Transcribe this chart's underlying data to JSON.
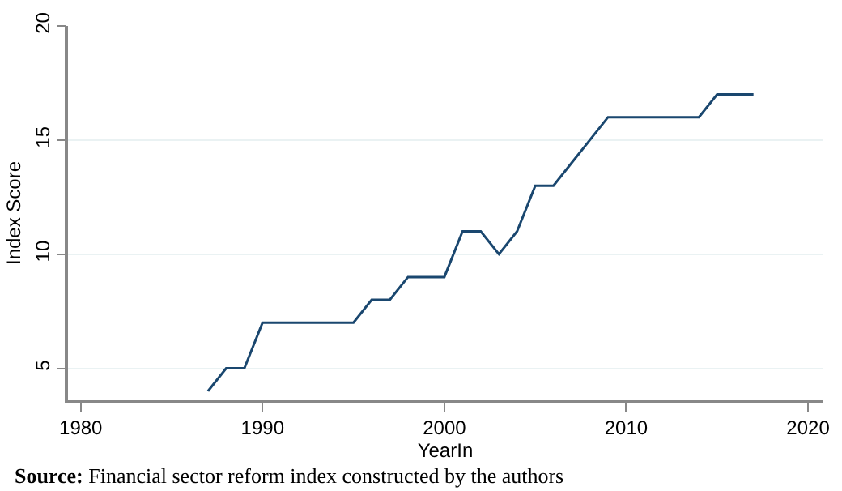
{
  "chart_data": {
    "type": "line",
    "xlabel": "YearIn",
    "ylabel": "Index Score",
    "x": [
      1987,
      1988,
      1989,
      1990,
      1991,
      1992,
      1993,
      1994,
      1995,
      1996,
      1997,
      1998,
      1999,
      2000,
      2001,
      2002,
      2003,
      2004,
      2005,
      2006,
      2007,
      2008,
      2009,
      2010,
      2011,
      2012,
      2013,
      2014,
      2015,
      2016,
      2017
    ],
    "series": [
      {
        "color": "#1a476f",
        "values": [
          4,
          5,
          5,
          7,
          7,
          7,
          7,
          7,
          7,
          8,
          8,
          9,
          9,
          9,
          11,
          11,
          10,
          11,
          13,
          13,
          14,
          15,
          16,
          16,
          16,
          16,
          16,
          16,
          17,
          17,
          17
        ]
      }
    ],
    "xlim": [
      1979.3,
      2020.8
    ],
    "xticks": [
      1980,
      1990,
      2000,
      2010,
      2020
    ],
    "ylim": [
      3.6,
      20
    ],
    "yticks": [
      5,
      10,
      15,
      20
    ],
    "grid": "y",
    "marker": "none",
    "line_style": "solid",
    "annotations": [
      "Source: Financial sector reform index constructed by the authors"
    ]
  }
}
